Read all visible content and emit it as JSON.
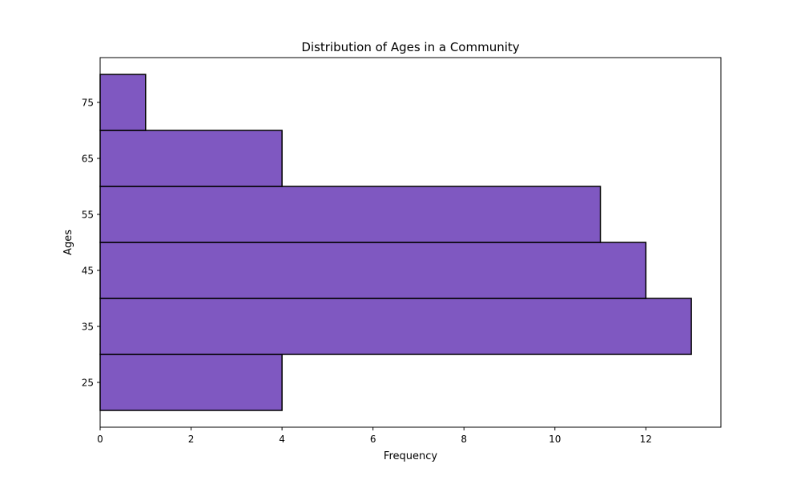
{
  "chart_data": {
    "type": "bar",
    "orientation": "horizontal",
    "title": "Distribution of Ages in a Community",
    "xlabel": "Frequency",
    "ylabel": "Ages",
    "bins": [
      {
        "start": 20,
        "end": 30,
        "value": 4
      },
      {
        "start": 30,
        "end": 40,
        "value": 13
      },
      {
        "start": 40,
        "end": 50,
        "value": 12
      },
      {
        "start": 50,
        "end": 60,
        "value": 11
      },
      {
        "start": 60,
        "end": 70,
        "value": 4
      },
      {
        "start": 70,
        "end": 80,
        "value": 1
      }
    ],
    "xticks": [
      0,
      2,
      4,
      6,
      8,
      10,
      12
    ],
    "yticks": [
      25,
      35,
      45,
      55,
      65,
      75
    ],
    "xlim": [
      0,
      13.65
    ],
    "ylim": [
      17,
      83
    ],
    "bar_color": "#7f58c1",
    "edge_color": "#000000",
    "grid": false
  }
}
